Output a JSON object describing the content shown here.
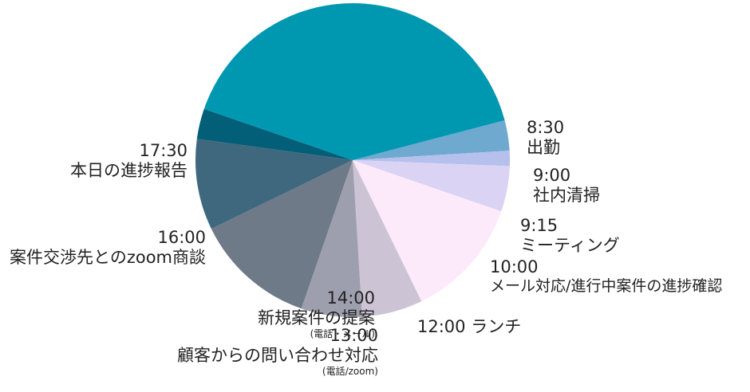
{
  "chart_data": {
    "type": "pie",
    "slices": [
      {
        "time": "8:30",
        "task": "出勤",
        "value": 30,
        "color": "#6FA9CF"
      },
      {
        "time": "9:00",
        "task": "社内清掃",
        "value": 15,
        "color": "#B6C0EC"
      },
      {
        "time": "9:15",
        "task": "ミーティング",
        "value": 45,
        "color": "#DAD3F3"
      },
      {
        "time": "10:00",
        "task": "メール対応/進行中案件の進捗確認",
        "value": 120,
        "color": "#FCEAFB"
      },
      {
        "time": "12:00",
        "task": "ランチ",
        "value": 60,
        "color": "#CCC4D4"
      },
      {
        "time": "13:00",
        "task": "顧客からの問い合わせ対応",
        "sub": "(電話/zoom)",
        "value": 60,
        "color": "#9E9FAE"
      },
      {
        "time": "14:00",
        "task": "新規案件の提案",
        "sub": "(電話・メール)",
        "value": 120,
        "color": "#6E7A88"
      },
      {
        "time": "16:00",
        "task": "案件交渉先とのzoom商談",
        "value": 90,
        "color": "#3F687E"
      },
      {
        "time": "17:30",
        "task": "本日の進捗報告",
        "value": 30,
        "color": "#035E78"
      },
      {
        "time": "",
        "task": "",
        "value": 390,
        "color": "#0098B1"
      }
    ]
  }
}
